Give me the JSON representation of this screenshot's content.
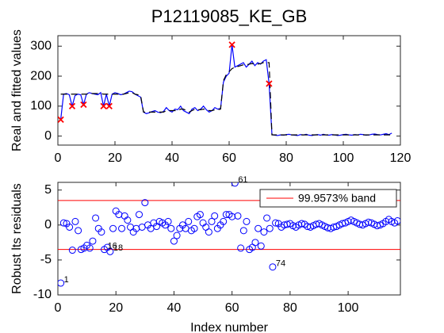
{
  "chart_data": [
    {
      "type": "line",
      "title": "P12119085_KE_GB",
      "ylabel": "Real and fitted values",
      "xlim": [
        0,
        120
      ],
      "xticks": [
        0,
        20,
        40,
        60,
        80,
        100,
        120
      ],
      "ylim": [
        -30,
        335
      ],
      "yticks": [
        0,
        100,
        200,
        300
      ],
      "series": [
        {
          "color": "#0000ff",
          "line_style": "-",
          "marker": "none",
          "x": [
            1,
            2,
            3,
            4,
            5,
            6,
            7,
            8,
            9,
            10,
            11,
            12,
            13,
            14,
            15,
            16,
            17,
            18,
            19,
            20,
            21,
            22,
            23,
            24,
            25,
            26,
            27,
            28,
            29,
            30,
            31,
            32,
            33,
            34,
            35,
            36,
            37,
            38,
            39,
            40,
            41,
            42,
            43,
            44,
            45,
            46,
            47,
            48,
            49,
            50,
            51,
            52,
            53,
            54,
            55,
            56,
            57,
            58,
            59,
            60,
            61,
            62,
            63,
            64,
            65,
            66,
            67,
            68,
            69,
            70,
            71,
            72,
            73,
            74,
            75,
            76,
            77,
            78,
            79,
            80,
            81,
            82,
            83,
            84,
            85,
            86,
            87,
            88,
            89,
            90,
            91,
            92,
            93,
            94,
            95,
            96,
            97,
            98,
            99,
            100,
            101,
            102,
            103,
            104,
            105,
            106,
            107,
            108,
            109,
            110,
            111,
            112,
            113,
            114,
            115,
            116,
            117
          ],
          "values": [
            55,
            140,
            142,
            138,
            100,
            135,
            140,
            138,
            105,
            140,
            145,
            142,
            140,
            138,
            145,
            100,
            140,
            100,
            140,
            145,
            142,
            138,
            140,
            145,
            150,
            148,
            140,
            135,
            130,
            80,
            75,
            78,
            82,
            85,
            80,
            78,
            82,
            95,
            85,
            80,
            90,
            88,
            100,
            85,
            80,
            75,
            90,
            95,
            85,
            90,
            100,
            88,
            80,
            85,
            95,
            90,
            92,
            180,
            200,
            210,
            305,
            230,
            235,
            240,
            245,
            230,
            240,
            250,
            235,
            245,
            240,
            250,
            255,
            175,
            5,
            3,
            2,
            4,
            3,
            5,
            6,
            4,
            3,
            2,
            5,
            4,
            6,
            3,
            2,
            4,
            5,
            3,
            6,
            4,
            3,
            5,
            4,
            2,
            3,
            5,
            6,
            4,
            3,
            5,
            4,
            6,
            5,
            3,
            4,
            6,
            7,
            5,
            4,
            6,
            8,
            5,
            10
          ]
        },
        {
          "color": "#000000",
          "line_style": "--",
          "marker": "none",
          "x": [
            1,
            2,
            3,
            4,
            5,
            6,
            7,
            8,
            9,
            10,
            11,
            12,
            13,
            14,
            15,
            16,
            17,
            18,
            19,
            20,
            21,
            22,
            23,
            24,
            25,
            26,
            27,
            28,
            29,
            30,
            31,
            32,
            33,
            34,
            35,
            36,
            37,
            38,
            39,
            40,
            41,
            42,
            43,
            44,
            45,
            46,
            47,
            48,
            49,
            50,
            51,
            52,
            53,
            54,
            55,
            56,
            57,
            58,
            59,
            60,
            61,
            62,
            63,
            64,
            65,
            66,
            67,
            68,
            69,
            70,
            71,
            72,
            73,
            74,
            75,
            76,
            77,
            78,
            79,
            80,
            81,
            82,
            83,
            84,
            85,
            86,
            87,
            88,
            89,
            90,
            91,
            92,
            93,
            94,
            95,
            96,
            97,
            98,
            99,
            100,
            101,
            102,
            103,
            104,
            105,
            106,
            107,
            108,
            109,
            110,
            111,
            112,
            113,
            114,
            115,
            116,
            117
          ],
          "values": [
            140,
            140,
            140,
            140,
            140,
            140,
            140,
            140,
            140,
            140,
            142,
            142,
            142,
            142,
            142,
            140,
            140,
            140,
            140,
            140,
            140,
            140,
            140,
            142,
            145,
            145,
            140,
            138,
            135,
            80,
            80,
            80,
            80,
            80,
            80,
            80,
            80,
            85,
            85,
            85,
            85,
            85,
            90,
            90,
            85,
            80,
            85,
            90,
            88,
            88,
            90,
            88,
            85,
            85,
            88,
            88,
            90,
            185,
            205,
            215,
            225,
            230,
            232,
            235,
            238,
            238,
            240,
            242,
            240,
            240,
            242,
            245,
            245,
            245,
            4,
            4,
            4,
            4,
            4,
            4,
            4,
            4,
            4,
            4,
            4,
            4,
            4,
            4,
            4,
            4,
            4,
            4,
            4,
            4,
            4,
            4,
            4,
            4,
            4,
            4,
            4,
            4,
            4,
            4,
            4,
            4,
            4,
            4,
            4,
            4,
            4,
            4,
            4,
            4,
            4,
            4,
            4
          ]
        },
        {
          "color": "#ff0000",
          "line_style": "none",
          "marker": "x",
          "x": [
            1,
            5,
            9,
            16,
            18,
            61,
            74
          ],
          "values": [
            55,
            100,
            105,
            100,
            100,
            305,
            175
          ]
        }
      ]
    },
    {
      "type": "scatter",
      "ylabel": "Robust lts residuals",
      "xlabel": "Index number",
      "xlim": [
        0,
        118
      ],
      "xticks": [
        0,
        20,
        40,
        60,
        80,
        100
      ],
      "ylim": [
        -10,
        6.1
      ],
      "yticks": [
        -10,
        -5,
        0,
        5
      ],
      "legend": "northeast",
      "bands": {
        "name": "99.9573% band",
        "color": "#ff0000",
        "values": [
          3.5,
          -3.5
        ]
      },
      "series": [
        {
          "color": "#0000ff",
          "line_style": "none",
          "marker": "o",
          "x": [
            1,
            2,
            3,
            4,
            5,
            6,
            7,
            8,
            9,
            10,
            11,
            12,
            13,
            14,
            15,
            16,
            17,
            18,
            19,
            20,
            21,
            22,
            23,
            24,
            25,
            26,
            27,
            28,
            29,
            30,
            31,
            32,
            33,
            34,
            35,
            36,
            37,
            38,
            39,
            40,
            41,
            42,
            43,
            44,
            45,
            46,
            47,
            48,
            49,
            50,
            51,
            52,
            53,
            54,
            55,
            56,
            57,
            58,
            59,
            60,
            61,
            62,
            63,
            64,
            65,
            66,
            67,
            68,
            69,
            70,
            71,
            72,
            73,
            74,
            75,
            76,
            77,
            78,
            79,
            80,
            81,
            82,
            83,
            84,
            85,
            86,
            87,
            88,
            89,
            90,
            91,
            92,
            93,
            94,
            95,
            96,
            97,
            98,
            99,
            100,
            101,
            102,
            103,
            104,
            105,
            106,
            107,
            108,
            109,
            110,
            111,
            112,
            113,
            114,
            115,
            116,
            117
          ],
          "values": [
            -8.3,
            0.3,
            0.2,
            -0.3,
            -3.6,
            0.5,
            -0.8,
            -3.5,
            -3.3,
            -2.9,
            -3.3,
            -2.3,
            1.0,
            -0.5,
            -1,
            -3.5,
            -3.2,
            -3.8,
            -0.5,
            2,
            1.5,
            -0.5,
            1.3,
            0.7,
            -0.3,
            -1,
            -0.5,
            1.5,
            -0.3,
            3.2,
            0,
            -0.5,
            0.3,
            -0.2,
            0.5,
            0.3,
            0,
            0.5,
            -0.5,
            -2.3,
            -1.5,
            -0.5,
            0,
            -0.5,
            0.5,
            -0.8,
            -0.5,
            1.2,
            1.5,
            0.3,
            -0.3,
            -1,
            0.5,
            1.3,
            -0.5,
            0,
            0.5,
            1.5,
            1.5,
            1.2,
            6,
            1.3,
            -3.3,
            -0.8,
            0.5,
            -3.5,
            -3.2,
            -2.5,
            -0.5,
            -3,
            -1,
            1,
            -0.5,
            -6,
            0.3,
            0.2,
            -0.3,
            0,
            0.1,
            0.2,
            -0.1,
            -0.3,
            0,
            0.2,
            0.1,
            -0.2,
            -0.3,
            -0.1,
            0.1,
            0.2,
            0,
            -0.2,
            -0.4,
            -0.5,
            -0.3,
            -0.2,
            0,
            0.2,
            0.3,
            0.5,
            0.7,
            0.5,
            0.3,
            0.1,
            0,
            0.2,
            0.4,
            0.3,
            0.1,
            -0.1,
            0,
            0.2,
            0.5,
            0.8,
            0.5,
            0.3,
            0.6
          ]
        }
      ],
      "annotations": [
        {
          "text": "1",
          "x": 1,
          "y": -8.3
        },
        {
          "text": "16",
          "x": 16,
          "y": -3.5
        },
        {
          "text": "18",
          "x": 18,
          "y": -3.8
        },
        {
          "text": "61",
          "x": 61,
          "y": 6
        },
        {
          "text": "74",
          "x": 74,
          "y": -6
        }
      ]
    }
  ]
}
